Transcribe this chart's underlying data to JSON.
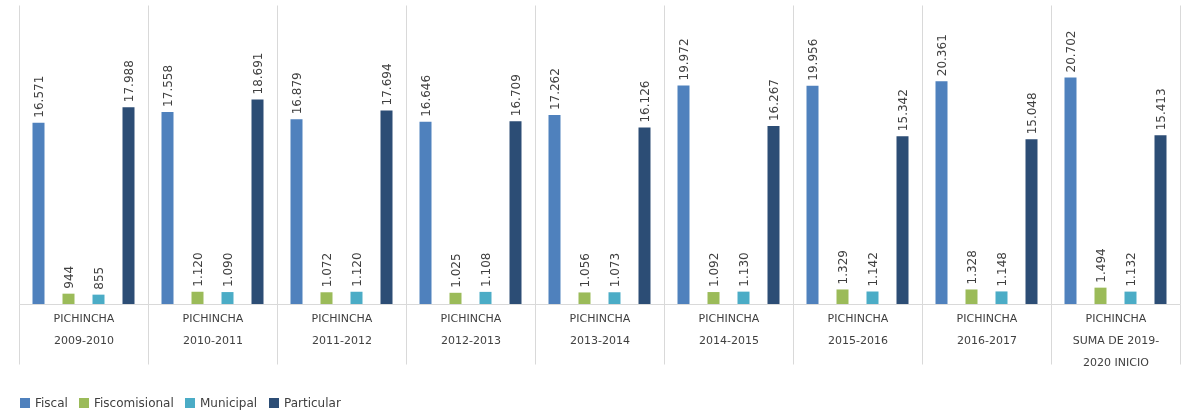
{
  "chart_data": {
    "type": "bar",
    "categories": [
      "PICHINCHA\n2009-2010",
      "PICHINCHA\n2010-2011",
      "PICHINCHA\n2011-2012",
      "PICHINCHA\n2012-2013",
      "PICHINCHA\n2013-2014",
      "PICHINCHA\n2014-2015",
      "PICHINCHA\n2015-2016",
      "PICHINCHA\n2016-2017",
      "PICHINCHA\nSUMA DE 2019-\n2020 INICIO"
    ],
    "series": [
      {
        "name": "Fiscal",
        "color": "#4f81bd",
        "values": [
          16571,
          17558,
          16879,
          16646,
          17262,
          19972,
          19956,
          20361,
          20702
        ],
        "value_labels": [
          "16.571",
          "17.558",
          "16.879",
          "16.646",
          "17.262",
          "19.972",
          "19.956",
          "20.361",
          "20.702"
        ]
      },
      {
        "name": "Fiscomisional",
        "color": "#9bbb59",
        "values": [
          944,
          1120,
          1072,
          1025,
          1056,
          1092,
          1329,
          1328,
          1494
        ],
        "value_labels": [
          "944",
          "1.120",
          "1.072",
          "1.025",
          "1.056",
          "1.092",
          "1.329",
          "1.328",
          "1.494"
        ]
      },
      {
        "name": "Municipal",
        "color": "#4bacc6",
        "values": [
          855,
          1090,
          1120,
          1108,
          1073,
          1130,
          1142,
          1148,
          1132
        ],
        "value_labels": [
          "855",
          "1.090",
          "1.120",
          "1.108",
          "1.073",
          "1.130",
          "1.142",
          "1.148",
          "1.132"
        ]
      },
      {
        "name": "Particular",
        "color": "#2c4d75",
        "values": [
          17988,
          18691,
          17694,
          16709,
          16126,
          16267,
          15342,
          15048,
          15413
        ],
        "value_labels": [
          "17.988",
          "18.691",
          "17.694",
          "16.709",
          "16.126",
          "16.267",
          "15.342",
          "15.048",
          "15.413"
        ]
      }
    ],
    "grid": "x",
    "legend": "bottom"
  }
}
